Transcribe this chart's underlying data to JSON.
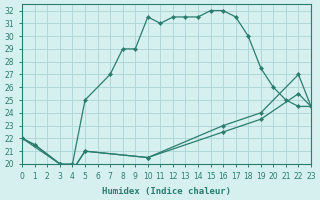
{
  "xlabel": "Humidex (Indice chaleur)",
  "bg_color": "#d6f0f0",
  "grid_color": "#b0d8d8",
  "line_color": "#2a7d6e",
  "xlim": [
    0,
    23
  ],
  "ylim": [
    20,
    32.5
  ],
  "yticks": [
    20,
    21,
    22,
    23,
    24,
    25,
    26,
    27,
    28,
    29,
    30,
    31,
    32
  ],
  "xticks": [
    0,
    1,
    2,
    3,
    4,
    5,
    6,
    7,
    8,
    9,
    10,
    11,
    12,
    13,
    14,
    15,
    16,
    17,
    18,
    19,
    20,
    21,
    22,
    23
  ],
  "curve1_x": [
    0,
    1,
    3,
    4,
    5,
    7,
    8,
    9,
    10,
    11,
    12,
    13,
    14,
    15,
    16,
    17,
    18,
    19,
    20,
    21,
    22,
    23
  ],
  "curve1_y": [
    22,
    21.5,
    20,
    20,
    25,
    27,
    29,
    29,
    31.5,
    31,
    31.5,
    31.5,
    31.5,
    32,
    32,
    31.5,
    30,
    27.5,
    26,
    25,
    24.5,
    24.5
  ],
  "curve2_x": [
    0,
    1,
    3,
    4,
    5,
    10,
    16,
    19,
    22,
    23
  ],
  "curve2_y": [
    22,
    21.5,
    20,
    19.5,
    21,
    20.5,
    22.5,
    23.5,
    25.5,
    24.5
  ],
  "curve3_x": [
    0,
    3,
    4,
    5,
    10,
    16,
    19,
    22,
    23
  ],
  "curve3_y": [
    22,
    20,
    19.5,
    21,
    20.5,
    23,
    24,
    27,
    24.5
  ]
}
